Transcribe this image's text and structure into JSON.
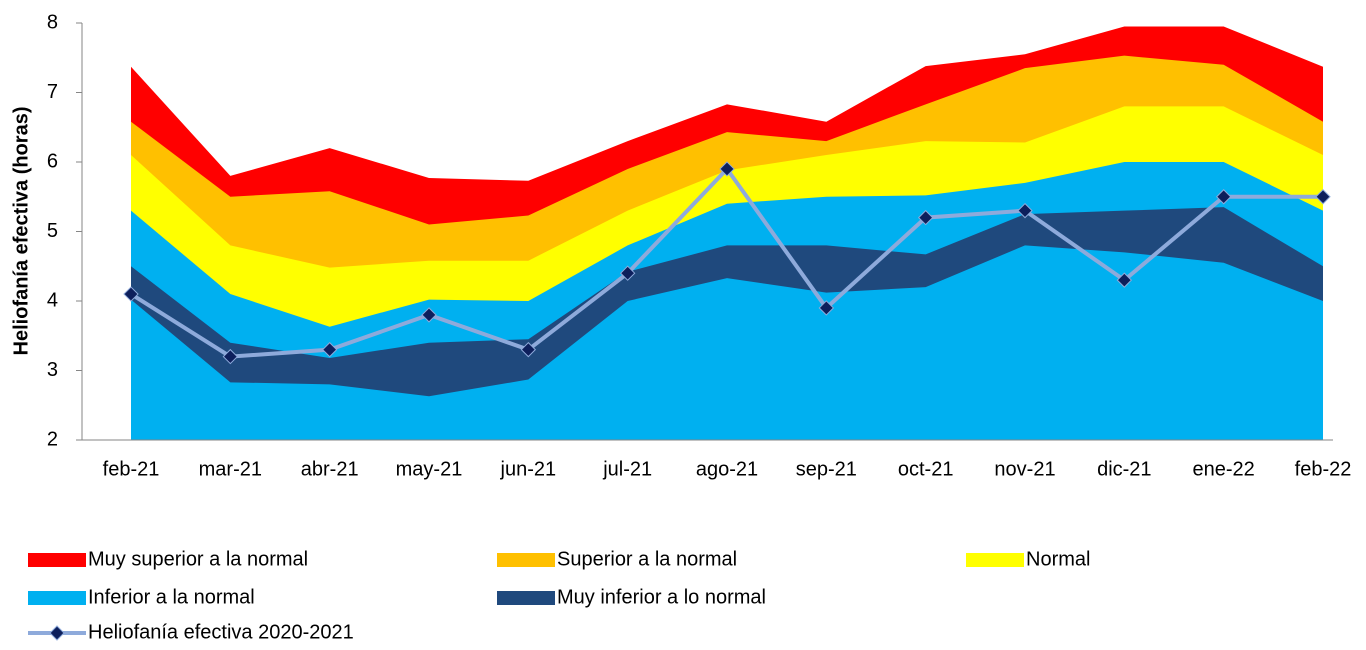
{
  "chart_data": {
    "type": "area_band",
    "y_label": "Heliofanía efectiva (horas)",
    "categories": [
      "feb-21",
      "mar-21",
      "abr-21",
      "may-21",
      "jun-21",
      "jul-21",
      "ago-21",
      "sep-21",
      "oct-21",
      "nov-21",
      "dic-21",
      "ene-22",
      "feb-22"
    ],
    "ylim": [
      2,
      8
    ],
    "yticks": [
      2,
      3,
      4,
      5,
      6,
      7,
      8
    ],
    "series": [
      {
        "name": "Muy superior a la normal",
        "color": "#ff0000",
        "values": [
          7.37,
          5.8,
          6.2,
          5.77,
          5.73,
          6.3,
          6.83,
          6.58,
          7.38,
          7.55,
          7.95,
          7.95,
          7.37
        ]
      },
      {
        "name": "Superior a la normal",
        "color": "#ffc000",
        "values": [
          6.58,
          5.5,
          5.58,
          5.1,
          5.23,
          5.9,
          6.43,
          6.3,
          6.83,
          7.35,
          7.53,
          7.4,
          6.58
        ]
      },
      {
        "name": "Normal",
        "color": "#ffff00",
        "values": [
          6.1,
          4.8,
          4.48,
          4.58,
          4.58,
          5.3,
          5.88,
          6.1,
          6.3,
          6.28,
          6.8,
          6.8,
          6.1
        ]
      },
      {
        "name": "Inferior a la normal",
        "color": "#00b0f0",
        "values": [
          5.3,
          4.1,
          3.63,
          4.02,
          4.0,
          4.8,
          5.4,
          5.5,
          5.52,
          5.7,
          6.0,
          6.0,
          5.3
        ]
      },
      {
        "name": "Muy inferior a lo normal",
        "color": "#1f497d",
        "values": [
          4.5,
          3.4,
          3.18,
          3.4,
          3.45,
          4.42,
          4.8,
          4.8,
          4.67,
          5.25,
          5.3,
          5.35,
          4.5
        ],
        "low": [
          4.02,
          2.83,
          2.8,
          2.63,
          2.87,
          4.0,
          4.33,
          4.12,
          4.2,
          4.8,
          4.7,
          4.55,
          4.0
        ]
      },
      {
        "name": "Heliofanía efectiva 2020-2021",
        "type": "line",
        "color": "#8eaadb",
        "marker_color": "#0d1f5c",
        "values": [
          4.1,
          3.2,
          3.3,
          3.8,
          3.3,
          4.4,
          5.9,
          3.9,
          5.2,
          5.3,
          4.3,
          5.5,
          5.5
        ]
      }
    ]
  }
}
